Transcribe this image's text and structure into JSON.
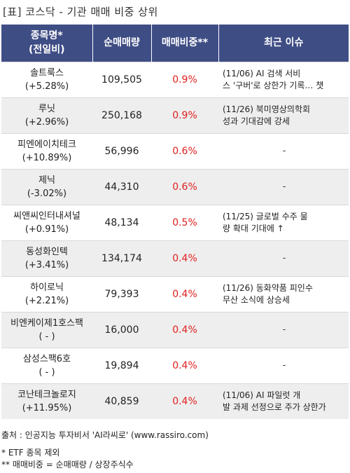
{
  "title": "[표] 코스닥 - 기관 매매 비중 상위",
  "headers": {
    "name_line1": "종목명*",
    "name_line2": "(전일비)",
    "net_buy": "순매매량",
    "ratio": "매매비중**",
    "issue": "최근 이슈"
  },
  "rows": [
    {
      "name": "솔트룩스",
      "change": "(+5.28%)",
      "net": "109,505",
      "ratio": "0.9%",
      "issue_l1": "(11/06) AI 검색 서비",
      "issue_l2": "스 '구버'로 상한가 기록… 챗"
    },
    {
      "name": "루닛",
      "change": "(+2.96%)",
      "net": "250,168",
      "ratio": "0.9%",
      "issue_l1": "(11/26) 북미영상의학회",
      "issue_l2": "성과 기대감에 강세"
    },
    {
      "name": "피엔에이치테크",
      "change": "(+10.89%)",
      "net": "56,996",
      "ratio": "0.6%",
      "issue_l1": "-",
      "issue_l2": ""
    },
    {
      "name": "제닉",
      "change": "(-3.02%)",
      "net": "44,310",
      "ratio": "0.6%",
      "issue_l1": "-",
      "issue_l2": ""
    },
    {
      "name": "씨앤씨인터내셔널",
      "change": "(+0.91%)",
      "net": "48,134",
      "ratio": "0.5%",
      "issue_l1": "(11/25) 글로벌 수주 물",
      "issue_l2": "량 확대 기대에 ↑"
    },
    {
      "name": "동성화인텍",
      "change": "(+3.41%)",
      "net": "134,174",
      "ratio": "0.4%",
      "issue_l1": "-",
      "issue_l2": ""
    },
    {
      "name": "하이로닉",
      "change": "(+2.21%)",
      "net": "79,393",
      "ratio": "0.4%",
      "issue_l1": "(11/26) 동화약품 피인수",
      "issue_l2": " 무산 소식에 상승세"
    },
    {
      "name": "비엔케이제1호스팩",
      "change": "( - )",
      "net": "16,000",
      "ratio": "0.4%",
      "issue_l1": "-",
      "issue_l2": ""
    },
    {
      "name": "삼성스팩6호",
      "change": "( - )",
      "net": "19,894",
      "ratio": "0.4%",
      "issue_l1": "-",
      "issue_l2": ""
    },
    {
      "name": "코난테크놀로지",
      "change": "(+11.95%)",
      "net": "40,859",
      "ratio": "0.4%",
      "issue_l1": "(11/06) AI 파일럿 개",
      "issue_l2": "발 과제 선정으로 주가 상한가"
    }
  ],
  "footer": {
    "source": "출처 : 인공지능 투자비서 'AI라씨로' (www.rassiro.com)",
    "note1": "* ETF 종목 제외",
    "note2": "** 매매비중 = 순매매량 / 상장주식수"
  },
  "colors": {
    "header_bg": "#3f4d85",
    "ratio_text": "#e02020",
    "row_alt": "#eeeeee"
  }
}
